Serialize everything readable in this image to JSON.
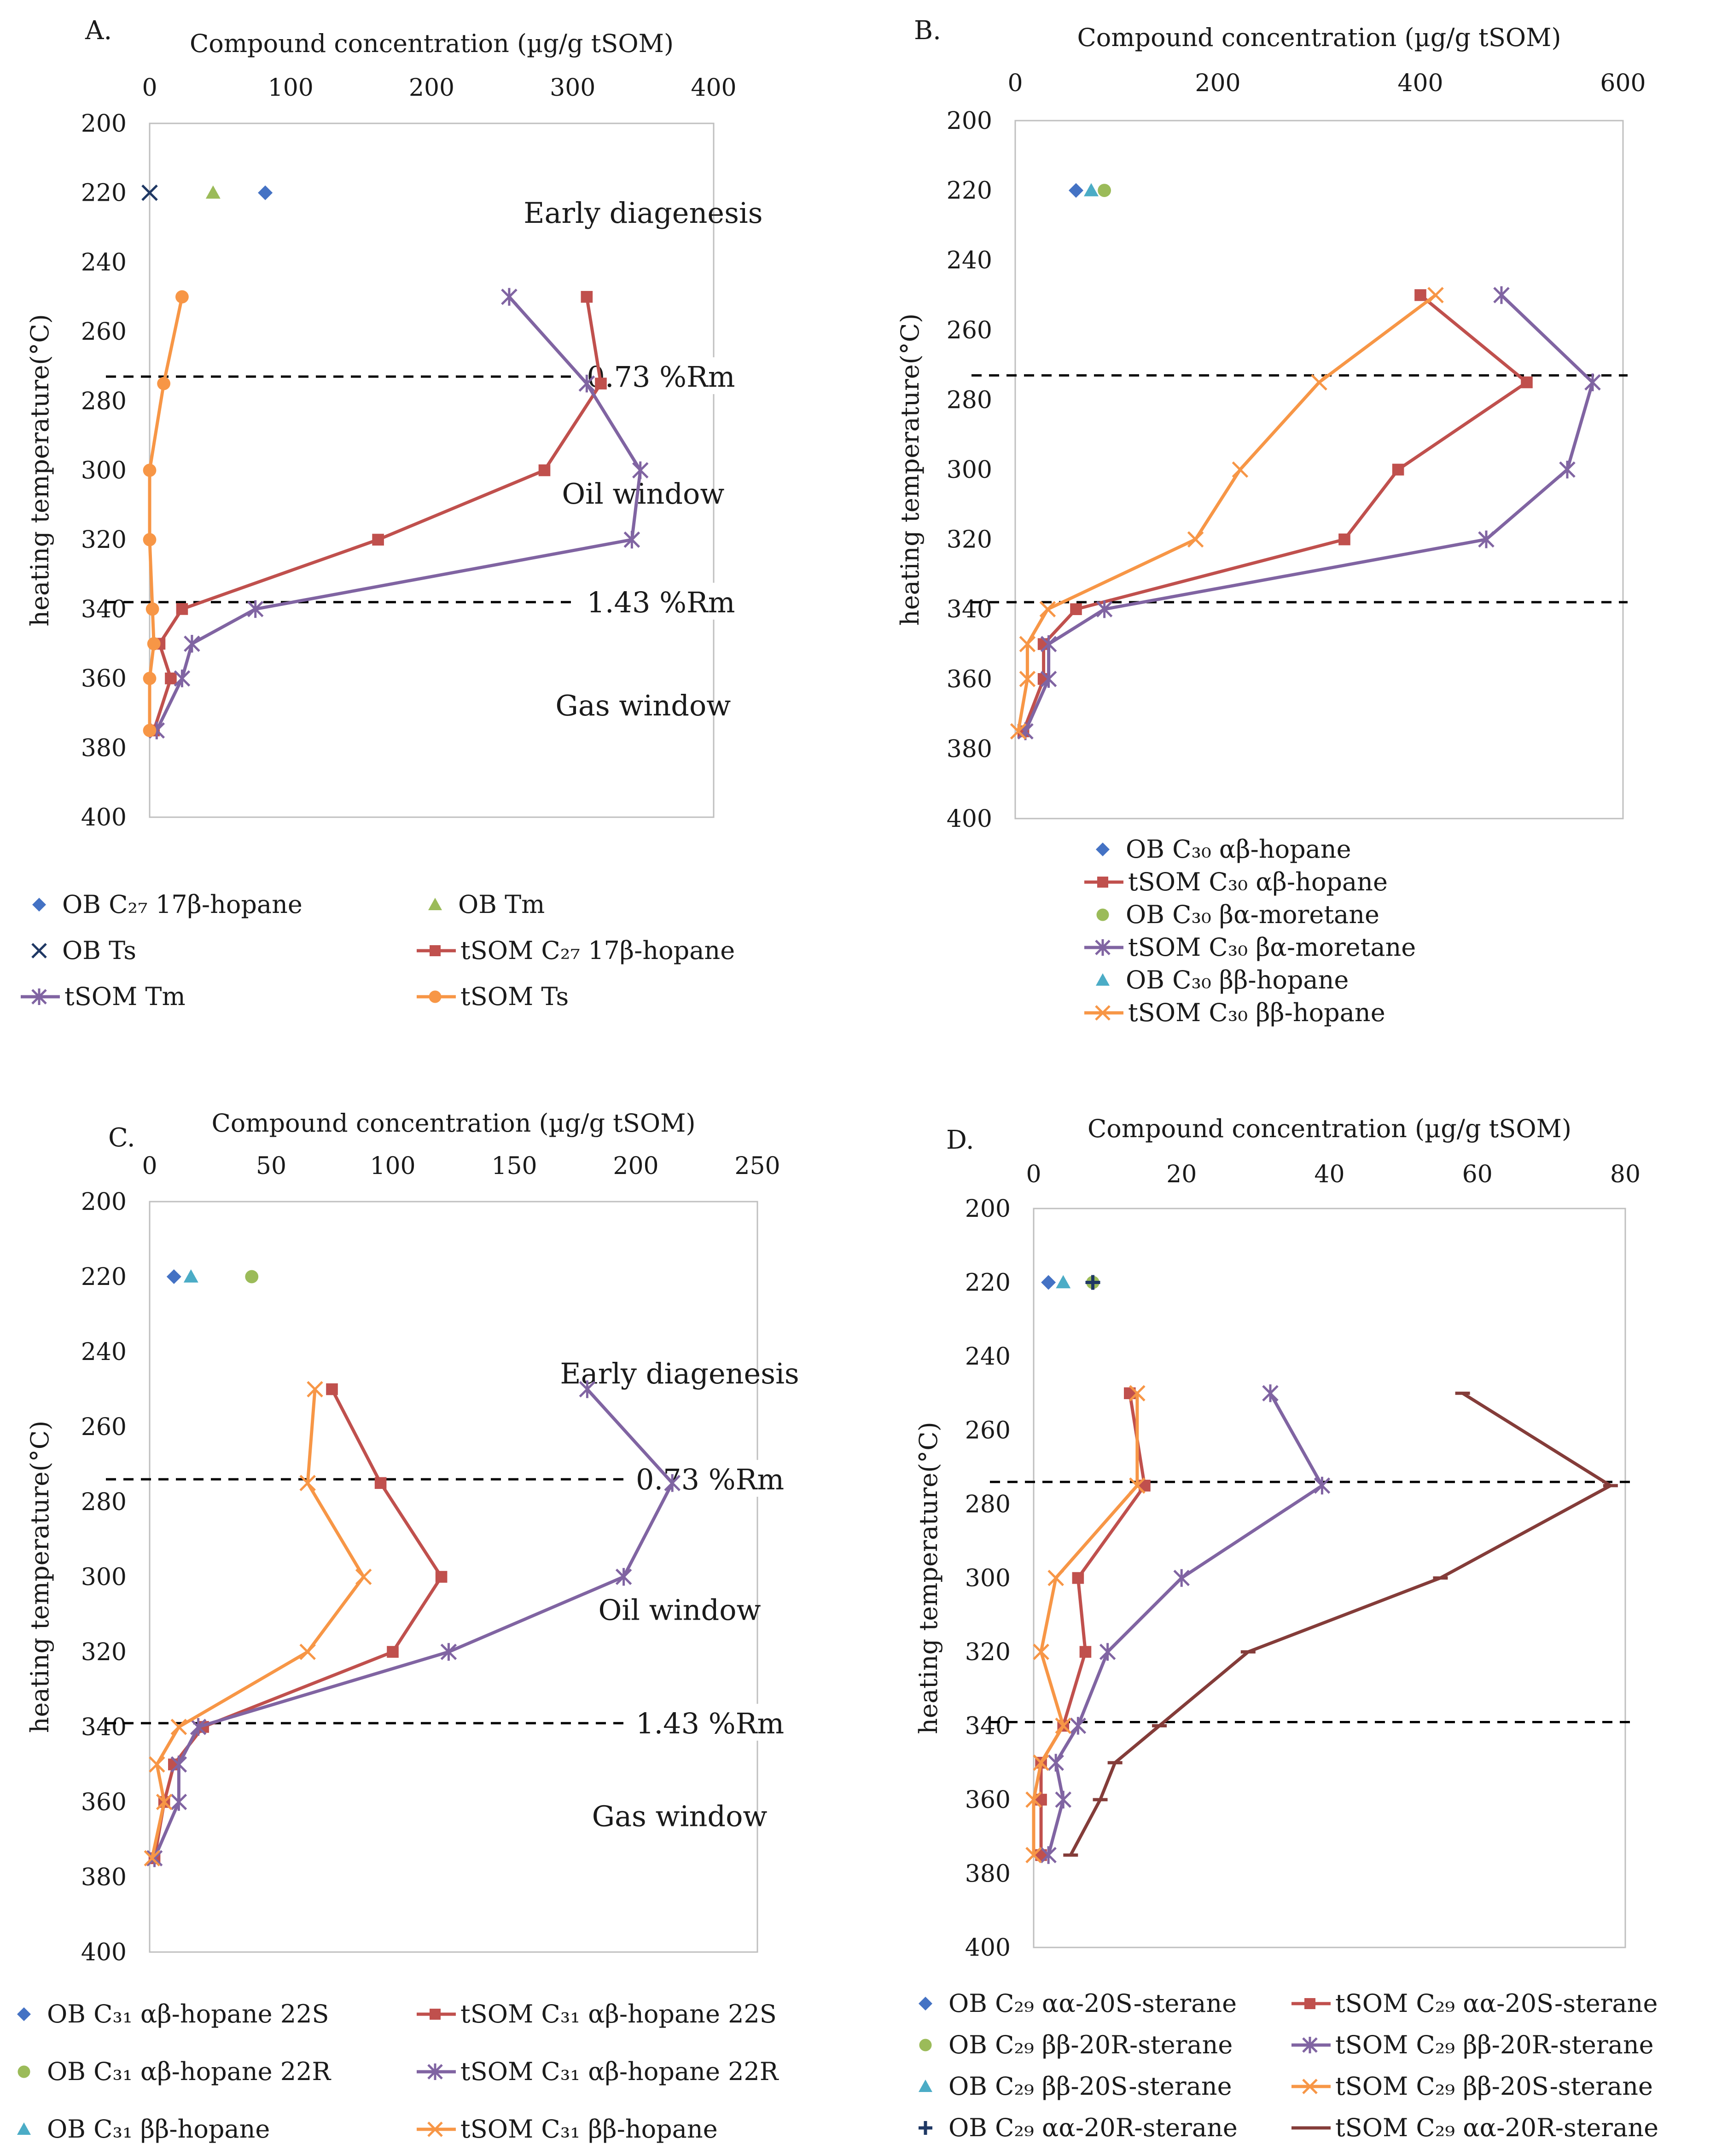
{
  "colors": {
    "blue": "#4472C4",
    "red": "#C0504D",
    "green": "#9BBB59",
    "purple": "#8064A2",
    "cyan": "#4BACC6",
    "orange": "#F79646",
    "navy": "#1F3864",
    "darkred": "#843C39"
  },
  "chart_data": [
    {
      "id": "A",
      "type": "line",
      "panel_label": "A.",
      "title": "",
      "xlabel": "Compound concentration (µg/g tSOM)",
      "ylabel": "heating temperature(°C)",
      "xlim": [
        0,
        400
      ],
      "xticks": [
        0,
        100,
        200,
        300,
        400
      ],
      "ylim": [
        200,
        400
      ],
      "yticks": [
        200,
        220,
        240,
        260,
        280,
        300,
        320,
        340,
        360,
        380,
        400
      ],
      "y_inverted": true,
      "thresholds": [
        {
          "y": 273,
          "label": "0.73 %Rm",
          "label_x": 310
        },
        {
          "y": 338,
          "label": "1.43 %Rm",
          "label_x": 310
        }
      ],
      "annotations": [
        {
          "text": "Early diagenesis",
          "x": 350,
          "y": 226
        },
        {
          "text": "Oil window",
          "x": 350,
          "y": 307
        },
        {
          "text": "Gas window",
          "x": 350,
          "y": 368
        }
      ],
      "series": [
        {
          "name": "OB C₂₇ 17β-hopane",
          "color_key": "blue",
          "marker": "diamond",
          "line": false,
          "points": [
            [
              82,
              220
            ]
          ]
        },
        {
          "name": "OB Tm",
          "color_key": "green",
          "marker": "triangle",
          "line": false,
          "points": [
            [
              45,
              220
            ]
          ]
        },
        {
          "name": "OB Ts",
          "color_key": "navy",
          "marker": "x",
          "line": false,
          "points": [
            [
              0,
              220
            ]
          ]
        },
        {
          "name": "tSOM C₂₇ 17β-hopane",
          "color_key": "red",
          "marker": "square",
          "line": true,
          "points": [
            [
              310,
              250
            ],
            [
              320,
              275
            ],
            [
              280,
              300
            ],
            [
              162,
              320
            ],
            [
              23,
              340
            ],
            [
              7,
              350
            ],
            [
              15,
              360
            ],
            [
              3,
              375
            ]
          ]
        },
        {
          "name": "tSOM Tm",
          "color_key": "purple",
          "marker": "star",
          "line": true,
          "points": [
            [
              255,
              250
            ],
            [
              310,
              275
            ],
            [
              348,
              300
            ],
            [
              342,
              320
            ],
            [
              75,
              340
            ],
            [
              30,
              350
            ],
            [
              23,
              360
            ],
            [
              5,
              375
            ]
          ]
        },
        {
          "name": "tSOM Ts",
          "color_key": "orange",
          "marker": "circle",
          "line": true,
          "points": [
            [
              23,
              250
            ],
            [
              10,
              275
            ],
            [
              0,
              300
            ],
            [
              0,
              320
            ],
            [
              2,
              340
            ],
            [
              3,
              350
            ],
            [
              0,
              360
            ],
            [
              0,
              375
            ]
          ]
        }
      ],
      "legend_layout": "two-column"
    },
    {
      "id": "B",
      "type": "line",
      "panel_label": "B.",
      "title": "",
      "xlabel": "Compound concentration (µg/g tSOM)",
      "ylabel": "heating temperature(°C)",
      "xlim": [
        0,
        600
      ],
      "xticks": [
        0,
        200,
        400,
        600
      ],
      "ylim": [
        200,
        400
      ],
      "yticks": [
        200,
        220,
        240,
        260,
        280,
        300,
        320,
        340,
        360,
        380,
        400
      ],
      "y_inverted": true,
      "thresholds": [
        {
          "y": 273,
          "label": "",
          "label_x": 0
        },
        {
          "y": 338,
          "label": "",
          "label_x": 0
        }
      ],
      "annotations": [],
      "series": [
        {
          "name": "OB C₃₀ αβ-hopane",
          "color_key": "blue",
          "marker": "diamond",
          "line": false,
          "points": [
            [
              60,
              220
            ]
          ]
        },
        {
          "name": "tSOM C₃₀ αβ-hopane",
          "color_key": "red",
          "marker": "square",
          "line": true,
          "points": [
            [
              400,
              250
            ],
            [
              505,
              275
            ],
            [
              378,
              300
            ],
            [
              325,
              320
            ],
            [
              60,
              340
            ],
            [
              28,
              350
            ],
            [
              28,
              360
            ],
            [
              8,
              375
            ]
          ]
        },
        {
          "name": "OB C₃₀ βα-moretane",
          "color_key": "green",
          "marker": "circle",
          "line": false,
          "points": [
            [
              88,
              220
            ]
          ]
        },
        {
          "name": "tSOM C₃₀ βα-moretane",
          "color_key": "purple",
          "marker": "star",
          "line": true,
          "points": [
            [
              480,
              250
            ],
            [
              570,
              275
            ],
            [
              545,
              300
            ],
            [
              465,
              320
            ],
            [
              88,
              340
            ],
            [
              33,
              350
            ],
            [
              33,
              360
            ],
            [
              10,
              375
            ]
          ]
        },
        {
          "name": "OB C₃₀ ββ-hopane",
          "color_key": "cyan",
          "marker": "triangle",
          "line": false,
          "points": [
            [
              75,
              220
            ]
          ]
        },
        {
          "name": "tSOM C₃₀ ββ-hopane",
          "color_key": "orange",
          "marker": "x",
          "line": true,
          "points": [
            [
              415,
              250
            ],
            [
              300,
              275
            ],
            [
              222,
              300
            ],
            [
              178,
              320
            ],
            [
              32,
              340
            ],
            [
              12,
              350
            ],
            [
              12,
              360
            ],
            [
              3,
              375
            ]
          ]
        }
      ],
      "legend_layout": "one-column"
    },
    {
      "id": "C",
      "type": "line",
      "panel_label": "C.",
      "title": "",
      "xlabel": "Compound concentration (µg/g tSOM)",
      "ylabel": "heating temperature(°C)",
      "xlim": [
        0,
        250
      ],
      "xticks": [
        0,
        50,
        100,
        150,
        200,
        250
      ],
      "ylim": [
        200,
        400
      ],
      "yticks": [
        200,
        220,
        240,
        260,
        280,
        300,
        320,
        340,
        360,
        380,
        400
      ],
      "y_inverted": true,
      "thresholds": [
        {
          "y": 274,
          "label": "0.73 %Rm",
          "label_x": 200
        },
        {
          "y": 339,
          "label": "1.43 %Rm",
          "label_x": 200
        }
      ],
      "annotations": [
        {
          "text": "Early diagenesis",
          "x": 218,
          "y": 246
        },
        {
          "text": "Oil window",
          "x": 218,
          "y": 309
        },
        {
          "text": "Gas window",
          "x": 218,
          "y": 364
        }
      ],
      "series": [
        {
          "name": "OB C₃₁ αβ-hopane 22S",
          "color_key": "blue",
          "marker": "diamond",
          "line": false,
          "points": [
            [
              10,
              220
            ]
          ]
        },
        {
          "name": "tSOM C₃₁ αβ-hopane 22S",
          "color_key": "red",
          "marker": "square",
          "line": true,
          "points": [
            [
              75,
              250
            ],
            [
              95,
              275
            ],
            [
              120,
              300
            ],
            [
              100,
              320
            ],
            [
              22,
              340
            ],
            [
              10,
              350
            ],
            [
              6,
              360
            ],
            [
              2,
              375
            ]
          ]
        },
        {
          "name": "OB C₃₁  αβ-hopane 22R",
          "color_key": "green",
          "marker": "circle",
          "line": false,
          "points": [
            [
              42,
              220
            ]
          ]
        },
        {
          "name": "tSOM C₃₁ αβ-hopane 22R",
          "color_key": "purple",
          "marker": "star",
          "line": true,
          "points": [
            [
              180,
              250
            ],
            [
              215,
              275
            ],
            [
              195,
              300
            ],
            [
              123,
              320
            ],
            [
              20,
              340
            ],
            [
              12,
              350
            ],
            [
              12,
              360
            ],
            [
              2,
              375
            ]
          ]
        },
        {
          "name": "OB C₃₁ ββ-hopane",
          "color_key": "cyan",
          "marker": "triangle",
          "line": false,
          "points": [
            [
              17,
              220
            ]
          ]
        },
        {
          "name": "tSOM C₃₁ ββ-hopane",
          "color_key": "orange",
          "marker": "x",
          "line": true,
          "points": [
            [
              68,
              250
            ],
            [
              65,
              275
            ],
            [
              88,
              300
            ],
            [
              65,
              320
            ],
            [
              12,
              340
            ],
            [
              3,
              350
            ],
            [
              6,
              360
            ],
            [
              1,
              375
            ]
          ]
        }
      ],
      "legend_layout": "two-column"
    },
    {
      "id": "D",
      "type": "line",
      "panel_label": "D.",
      "title": "",
      "xlabel": "Compound concentration (µg/g tSOM)",
      "ylabel": "heating temperature(°C)",
      "xlim": [
        0,
        80
      ],
      "xticks": [
        0,
        20,
        40,
        60,
        80
      ],
      "ylim": [
        200,
        400
      ],
      "yticks": [
        200,
        220,
        240,
        260,
        280,
        300,
        320,
        340,
        360,
        380,
        400
      ],
      "y_inverted": true,
      "thresholds": [
        {
          "y": 274,
          "label": "",
          "label_x": 0
        },
        {
          "y": 339,
          "label": "",
          "label_x": 0
        }
      ],
      "annotations": [],
      "series": [
        {
          "name": "OB C₂₉ αα-20S-sterane",
          "color_key": "blue",
          "marker": "diamond",
          "line": false,
          "points": [
            [
              2,
              220
            ]
          ]
        },
        {
          "name": "tSOM C₂₉ αα-20S-sterane",
          "color_key": "red",
          "marker": "square",
          "line": true,
          "points": [
            [
              13,
              250
            ],
            [
              15,
              275
            ],
            [
              6,
              300
            ],
            [
              7,
              320
            ],
            [
              4,
              340
            ],
            [
              1,
              350
            ],
            [
              1,
              360
            ],
            [
              1,
              375
            ]
          ]
        },
        {
          "name": "OB C₂₉ ββ-20R-sterane",
          "color_key": "green",
          "marker": "circle",
          "line": false,
          "points": [
            [
              8,
              220
            ]
          ]
        },
        {
          "name": "tSOM C₂₉ ββ-20R-sterane",
          "color_key": "purple",
          "marker": "star",
          "line": true,
          "points": [
            [
              32,
              250
            ],
            [
              39,
              275
            ],
            [
              20,
              300
            ],
            [
              10,
              320
            ],
            [
              6,
              340
            ],
            [
              3,
              350
            ],
            [
              4,
              360
            ],
            [
              2,
              375
            ]
          ]
        },
        {
          "name": "OB C₂₉ ββ-20S-sterane",
          "color_key": "cyan",
          "marker": "triangle",
          "line": false,
          "points": [
            [
              4,
              220
            ]
          ]
        },
        {
          "name": "tSOM C₂₉ ββ-20S-sterane",
          "color_key": "orange",
          "marker": "x",
          "line": true,
          "points": [
            [
              14,
              250
            ],
            [
              14,
              275
            ],
            [
              3,
              300
            ],
            [
              1,
              320
            ],
            [
              4,
              340
            ],
            [
              1,
              350
            ],
            [
              0,
              360
            ],
            [
              0,
              375
            ]
          ]
        },
        {
          "name": "OB C₂₉ αα-20R-sterane",
          "color_key": "navy",
          "marker": "plus",
          "line": false,
          "points": [
            [
              8,
              220
            ]
          ]
        },
        {
          "name": "tSOM C₂₉ αα-20R-sterane",
          "color_key": "darkred",
          "marker": "dash",
          "line": true,
          "points": [
            [
              58,
              250
            ],
            [
              78,
              275
            ],
            [
              55,
              300
            ],
            [
              29,
              320
            ],
            [
              17,
              340
            ],
            [
              11,
              350
            ],
            [
              9,
              360
            ],
            [
              5,
              375
            ]
          ]
        }
      ],
      "legend_layout": "two-column"
    }
  ]
}
